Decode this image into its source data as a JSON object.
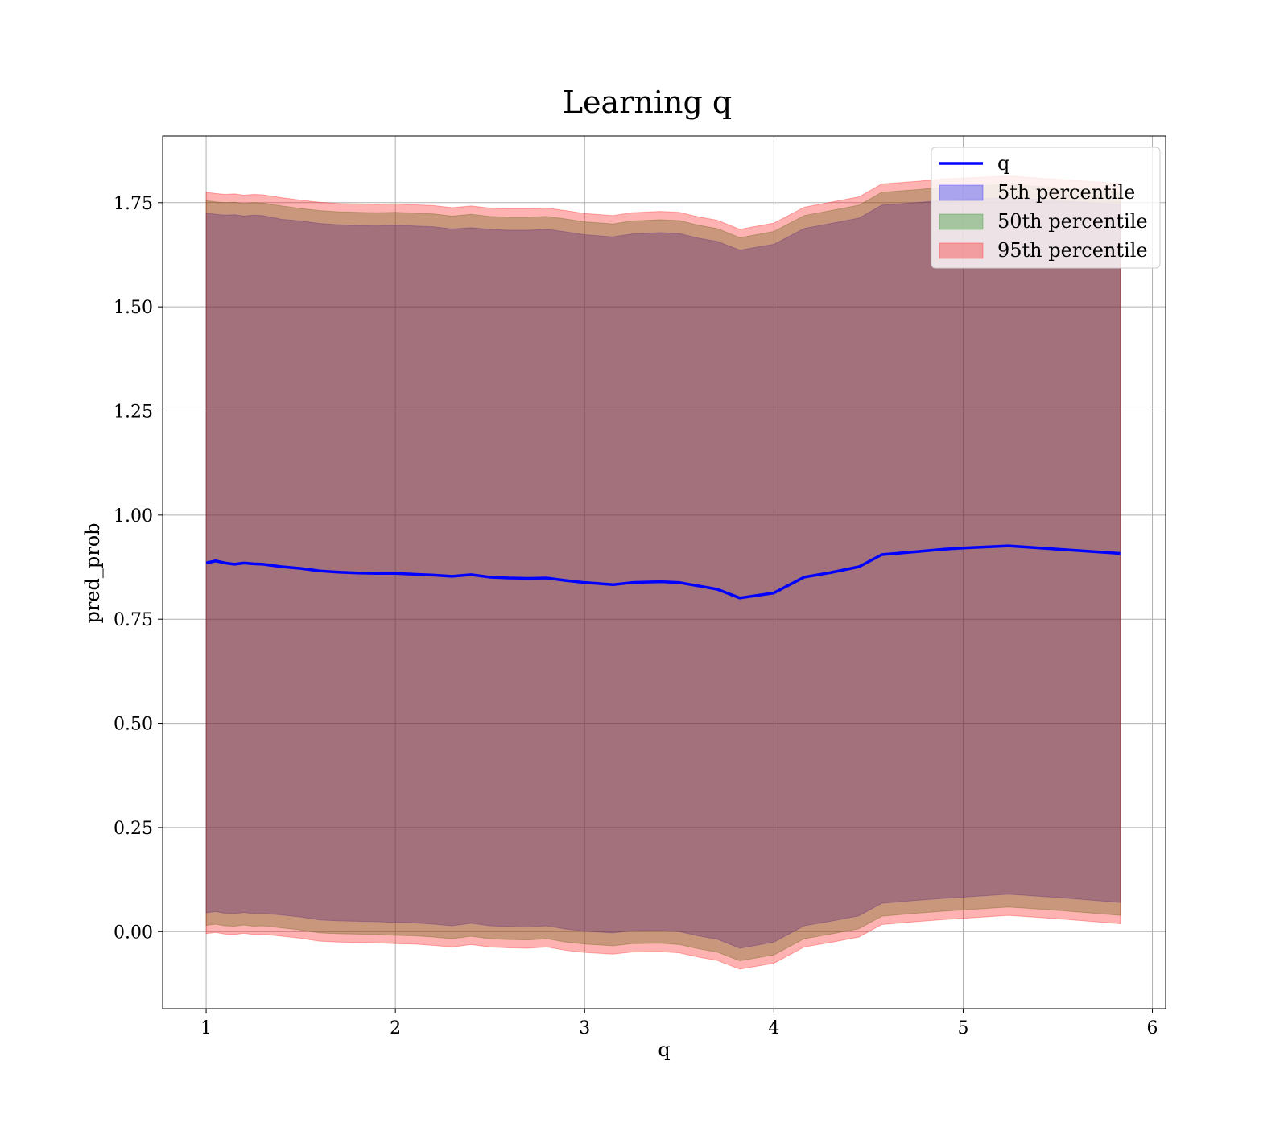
{
  "chart_data": {
    "type": "area",
    "title": "Learning q",
    "xlabel": "q",
    "ylabel": "pred_prob",
    "xlim": [
      0.77,
      6.07
    ],
    "ylim": [
      -0.185,
      1.91
    ],
    "xticks": [
      1,
      2,
      3,
      4,
      5,
      6
    ],
    "yticks": [
      0.0,
      0.25,
      0.5,
      0.75,
      1.0,
      1.25,
      1.5,
      1.75
    ],
    "xtick_labels": [
      "1",
      "2",
      "3",
      "4",
      "5",
      "6"
    ],
    "ytick_labels": [
      "0.00",
      "0.25",
      "0.50",
      "0.75",
      "1.00",
      "1.25",
      "1.50",
      "1.75"
    ],
    "grid": true,
    "legend_position": "top-right",
    "x": [
      1.0,
      1.05,
      1.1,
      1.15,
      1.2,
      1.25,
      1.3,
      1.4,
      1.5,
      1.6,
      1.7,
      1.8,
      1.9,
      2.0,
      2.1,
      2.2,
      2.3,
      2.4,
      2.5,
      2.6,
      2.7,
      2.8,
      2.9,
      3.0,
      3.15,
      3.25,
      3.4,
      3.5,
      3.6,
      3.7,
      3.82,
      4.0,
      4.16,
      4.3,
      4.45,
      4.57,
      4.75,
      4.9,
      5.0,
      5.24,
      5.5,
      5.83
    ],
    "series": [
      {
        "name": "q",
        "kind": "line",
        "color": "#0000ff",
        "values": [
          0.885,
          0.89,
          0.885,
          0.882,
          0.885,
          0.883,
          0.882,
          0.876,
          0.872,
          0.866,
          0.863,
          0.861,
          0.86,
          0.86,
          0.858,
          0.856,
          0.853,
          0.857,
          0.851,
          0.849,
          0.848,
          0.849,
          0.843,
          0.838,
          0.833,
          0.838,
          0.84,
          0.838,
          0.83,
          0.822,
          0.801,
          0.813,
          0.851,
          0.862,
          0.876,
          0.905,
          0.912,
          0.918,
          0.921,
          0.926,
          0.918,
          0.908
        ]
      },
      {
        "name": "5th percentile",
        "kind": "band",
        "color": "#0000ff",
        "opacity": 0.3,
        "upper": [
          1.725,
          1.722,
          1.72,
          1.721,
          1.718,
          1.72,
          1.719,
          1.71,
          1.706,
          1.7,
          1.697,
          1.695,
          1.694,
          1.696,
          1.694,
          1.692,
          1.687,
          1.69,
          1.686,
          1.684,
          1.684,
          1.686,
          1.68,
          1.673,
          1.668,
          1.675,
          1.678,
          1.676,
          1.665,
          1.657,
          1.636,
          1.65,
          1.688,
          1.7,
          1.713,
          1.744,
          1.75,
          1.756,
          1.758,
          1.762,
          1.755,
          1.745
        ],
        "lower": [
          0.045,
          0.048,
          0.044,
          0.043,
          0.046,
          0.043,
          0.044,
          0.04,
          0.035,
          0.028,
          0.026,
          0.025,
          0.024,
          0.022,
          0.021,
          0.018,
          0.014,
          0.02,
          0.014,
          0.012,
          0.011,
          0.014,
          0.006,
          0.001,
          -0.003,
          0.002,
          0.003,
          0.0,
          -0.01,
          -0.018,
          -0.04,
          -0.025,
          0.014,
          0.025,
          0.038,
          0.068,
          0.075,
          0.08,
          0.083,
          0.09,
          0.082,
          0.07
        ]
      },
      {
        "name": "50th percentile",
        "kind": "band",
        "color": "#008000",
        "opacity": 0.3,
        "upper": [
          1.755,
          1.752,
          1.75,
          1.751,
          1.748,
          1.75,
          1.749,
          1.742,
          1.736,
          1.731,
          1.728,
          1.727,
          1.726,
          1.727,
          1.725,
          1.723,
          1.718,
          1.722,
          1.717,
          1.715,
          1.715,
          1.717,
          1.711,
          1.704,
          1.699,
          1.706,
          1.709,
          1.707,
          1.696,
          1.688,
          1.666,
          1.681,
          1.719,
          1.731,
          1.744,
          1.775,
          1.781,
          1.787,
          1.789,
          1.794,
          1.786,
          1.776
        ],
        "lower": [
          0.015,
          0.018,
          0.014,
          0.013,
          0.016,
          0.013,
          0.014,
          0.009,
          0.004,
          -0.003,
          -0.005,
          -0.006,
          -0.007,
          -0.009,
          -0.01,
          -0.013,
          -0.017,
          -0.011,
          -0.017,
          -0.019,
          -0.02,
          -0.017,
          -0.025,
          -0.03,
          -0.034,
          -0.029,
          -0.028,
          -0.031,
          -0.041,
          -0.049,
          -0.07,
          -0.056,
          -0.017,
          -0.006,
          0.007,
          0.037,
          0.044,
          0.049,
          0.052,
          0.059,
          0.051,
          0.039
        ]
      },
      {
        "name": "95th percentile",
        "kind": "band",
        "color": "#ff0000",
        "opacity": 0.3,
        "upper": [
          1.775,
          1.772,
          1.77,
          1.771,
          1.768,
          1.77,
          1.769,
          1.762,
          1.756,
          1.751,
          1.748,
          1.747,
          1.746,
          1.747,
          1.745,
          1.743,
          1.738,
          1.742,
          1.737,
          1.735,
          1.735,
          1.737,
          1.731,
          1.724,
          1.719,
          1.726,
          1.729,
          1.727,
          1.716,
          1.708,
          1.686,
          1.701,
          1.739,
          1.751,
          1.764,
          1.795,
          1.801,
          1.807,
          1.809,
          1.814,
          1.806,
          1.796
        ],
        "lower": [
          -0.005,
          -0.002,
          -0.006,
          -0.007,
          -0.004,
          -0.007,
          -0.006,
          -0.011,
          -0.016,
          -0.023,
          -0.025,
          -0.026,
          -0.027,
          -0.029,
          -0.03,
          -0.033,
          -0.037,
          -0.031,
          -0.037,
          -0.039,
          -0.04,
          -0.037,
          -0.045,
          -0.05,
          -0.054,
          -0.049,
          -0.048,
          -0.051,
          -0.061,
          -0.069,
          -0.09,
          -0.076,
          -0.037,
          -0.026,
          -0.013,
          0.017,
          0.024,
          0.029,
          0.032,
          0.039,
          0.031,
          0.019
        ]
      }
    ],
    "legend": [
      {
        "label": "q",
        "kind": "line",
        "color": "#0000ff"
      },
      {
        "label": "5th percentile",
        "kind": "patch",
        "color": "#0000ff",
        "opacity": 0.3
      },
      {
        "label": "50th percentile",
        "kind": "patch",
        "color": "#008000",
        "opacity": 0.3
      },
      {
        "label": "95th percentile",
        "kind": "patch",
        "color": "#ff0000",
        "opacity": 0.3
      }
    ]
  }
}
